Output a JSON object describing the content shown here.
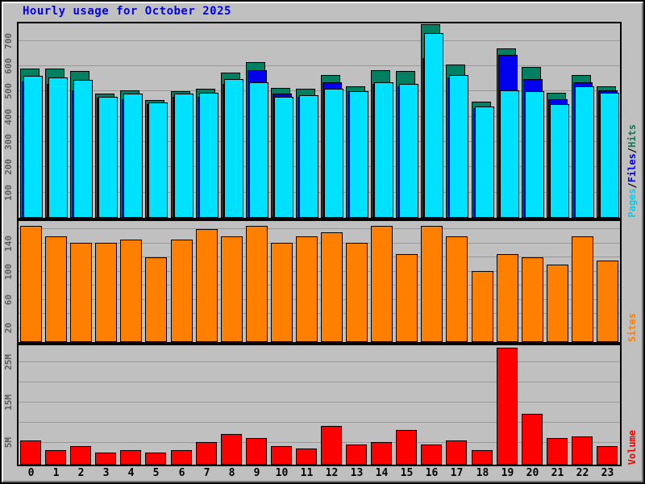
{
  "title": "Hourly usage for October 2025",
  "title_color": "#0000EE",
  "colors": {
    "background": "#C0C0C0",
    "gridline": "#999999",
    "hits": "#008060",
    "files": "#0000EE",
    "pages": "#00E0FF",
    "sites": "#FF8000",
    "volume": "#FF0000",
    "tick_text": "#5e5e5e",
    "hour_text": "#000000"
  },
  "x_labels": [
    "0",
    "1",
    "2",
    "3",
    "4",
    "5",
    "6",
    "7",
    "8",
    "9",
    "10",
    "11",
    "12",
    "13",
    "14",
    "15",
    "16",
    "17",
    "18",
    "19",
    "20",
    "21",
    "22",
    "23"
  ],
  "right_axis_labels": [
    {
      "panel": 0,
      "parts": [
        {
          "text": "Pages",
          "color": "#00D0EE"
        },
        {
          "text": "/",
          "color": "#000000"
        },
        {
          "text": "Files",
          "color": "#0000EE"
        },
        {
          "text": "/",
          "color": "#000000"
        },
        {
          "text": "Hits",
          "color": "#008060"
        }
      ]
    },
    {
      "panel": 1,
      "parts": [
        {
          "text": "Sites",
          "color": "#FF8000"
        }
      ]
    },
    {
      "panel": 2,
      "parts": [
        {
          "text": "Volume",
          "color": "#FF0000"
        }
      ]
    }
  ],
  "chart_data": [
    {
      "type": "bar",
      "name": "hits-files-pages",
      "categories": [
        "0",
        "1",
        "2",
        "3",
        "4",
        "5",
        "6",
        "7",
        "8",
        "9",
        "10",
        "11",
        "12",
        "13",
        "14",
        "15",
        "16",
        "17",
        "18",
        "19",
        "20",
        "21",
        "22",
        "23"
      ],
      "series": [
        {
          "name": "Hits",
          "color": "#008060",
          "values": [
            590,
            590,
            580,
            490,
            505,
            465,
            500,
            510,
            575,
            615,
            515,
            510,
            565,
            520,
            585,
            580,
            765,
            605,
            460,
            670,
            595,
            495,
            565,
            520
          ]
        },
        {
          "name": "Files",
          "color": "#0000EE",
          "values": [
            540,
            530,
            505,
            475,
            470,
            450,
            480,
            480,
            530,
            585,
            490,
            480,
            535,
            500,
            530,
            520,
            630,
            555,
            435,
            645,
            550,
            470,
            535,
            505
          ]
        },
        {
          "name": "Pages",
          "color": "#00E0FF",
          "values": [
            560,
            555,
            545,
            480,
            490,
            455,
            490,
            495,
            550,
            535,
            480,
            485,
            510,
            500,
            535,
            530,
            730,
            565,
            440,
            505,
            500,
            450,
            520,
            495
          ]
        }
      ],
      "ylim": [
        0,
        768
      ],
      "gridlines": [
        100,
        200,
        300,
        400,
        500,
        600,
        700
      ],
      "yticks": [
        {
          "v": 100,
          "t": "100"
        },
        {
          "v": 200,
          "t": "200"
        },
        {
          "v": 300,
          "t": "300"
        },
        {
          "v": 400,
          "t": "400"
        },
        {
          "v": 500,
          "t": "500"
        },
        {
          "v": 600,
          "t": "600"
        },
        {
          "v": 700,
          "t": "700"
        }
      ],
      "legend_position": "right-vertical",
      "grid": true
    },
    {
      "type": "bar",
      "name": "sites",
      "categories": [
        "0",
        "1",
        "2",
        "3",
        "4",
        "5",
        "6",
        "7",
        "8",
        "9",
        "10",
        "11",
        "12",
        "13",
        "14",
        "15",
        "16",
        "17",
        "18",
        "19",
        "20",
        "21",
        "22",
        "23"
      ],
      "series": [
        {
          "name": "Sites",
          "color": "#FF8000",
          "values": [
            165,
            150,
            140,
            140,
            145,
            120,
            145,
            160,
            150,
            165,
            140,
            150,
            155,
            140,
            165,
            125,
            165,
            150,
            100,
            125,
            120,
            110,
            150,
            115
          ]
        }
      ],
      "ylim": [
        0,
        170
      ],
      "gridlines": [
        20,
        40,
        60,
        80,
        100,
        120,
        140,
        160
      ],
      "yticks": [
        {
          "v": 20,
          "t": "20"
        },
        {
          "v": 60,
          "t": "60"
        },
        {
          "v": 100,
          "t": "100"
        },
        {
          "v": 140,
          "t": "140"
        }
      ],
      "legend_position": "right-vertical",
      "grid": true
    },
    {
      "type": "bar",
      "name": "volume",
      "categories": [
        "0",
        "1",
        "2",
        "3",
        "4",
        "5",
        "6",
        "7",
        "8",
        "9",
        "10",
        "11",
        "12",
        "13",
        "14",
        "15",
        "16",
        "17",
        "18",
        "19",
        "20",
        "21",
        "22",
        "23"
      ],
      "series": [
        {
          "name": "Volume",
          "color": "#FF0000",
          "unit": "MBytes",
          "values": [
            6,
            3.5,
            4.5,
            3,
            3.5,
            3,
            3.5,
            5.5,
            7.5,
            6.5,
            4.5,
            4,
            9.5,
            5,
            5.5,
            8.5,
            5,
            6,
            3.5,
            29,
            12.5,
            6.5,
            7,
            4.5
          ]
        }
      ],
      "ylim": [
        0,
        29.5
      ],
      "gridlines": [
        5,
        10,
        15,
        20,
        25
      ],
      "yticks": [
        {
          "v": 5,
          "t": "5M"
        },
        {
          "v": 15,
          "t": "15M"
        },
        {
          "v": 25,
          "t": "25M"
        }
      ],
      "legend_position": "right-vertical",
      "grid": true
    }
  ]
}
